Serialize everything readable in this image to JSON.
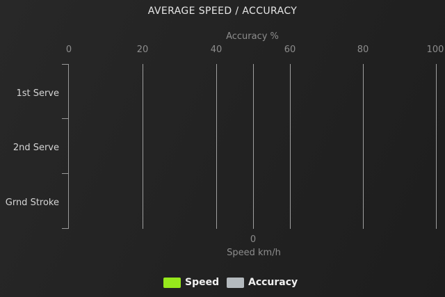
{
  "title": "AVERAGE SPEED / ACCURACY",
  "colors": {
    "background": "#232323",
    "speed": "#96e81c",
    "accuracy": "#b4babe",
    "grid_line": "#a0a0a0",
    "muted_text": "#8d8d8d",
    "light_text": "#d5d5d5"
  },
  "axes": {
    "top": {
      "name": "Accuracy %",
      "tick_labels": [
        "0",
        "20",
        "40",
        "60",
        "80",
        "100"
      ]
    },
    "bottom": {
      "name": "Speed km/h",
      "tick_labels": [
        "0"
      ]
    },
    "left": {
      "categories": [
        "1st Serve",
        "2nd Serve",
        "Grnd Stroke"
      ]
    }
  },
  "legend": {
    "items": [
      {
        "label": "Speed",
        "color": "#96e81c"
      },
      {
        "label": "Accuracy",
        "color": "#b4babe"
      }
    ]
  },
  "chart_data": {
    "type": "bar",
    "orientation": "horizontal",
    "title": "AVERAGE SPEED / ACCURACY",
    "categories": [
      "1st Serve",
      "2nd Serve",
      "Grnd Stroke"
    ],
    "series": [
      {
        "name": "Speed",
        "axis": "bottom",
        "axis_label": "Speed km/h",
        "color": "#96e81c",
        "values": [
          0,
          0,
          0
        ]
      },
      {
        "name": "Accuracy",
        "axis": "top",
        "axis_label": "Accuracy %",
        "color": "#b4babe",
        "values": [
          0,
          0,
          0
        ]
      }
    ],
    "top_axis": {
      "label": "Accuracy %",
      "ticks": [
        0,
        20,
        40,
        60,
        80,
        100
      ],
      "range": [
        0,
        100
      ]
    },
    "bottom_axis": {
      "label": "Speed km/h",
      "visible_tick_labels": [
        "0"
      ]
    },
    "grid": true,
    "legend_position": "bottom-center"
  }
}
